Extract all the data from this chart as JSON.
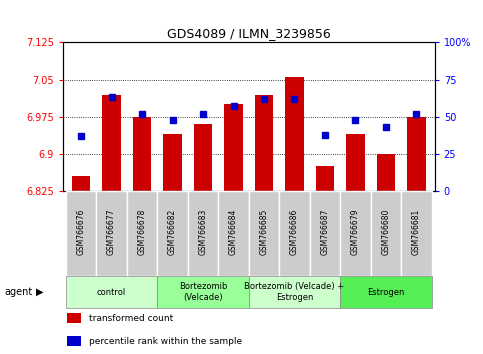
{
  "title": "GDS4089 / ILMN_3239856",
  "samples": [
    "GSM766676",
    "GSM766677",
    "GSM766678",
    "GSM766682",
    "GSM766683",
    "GSM766684",
    "GSM766685",
    "GSM766686",
    "GSM766687",
    "GSM766679",
    "GSM766680",
    "GSM766681"
  ],
  "transformed_counts": [
    6.855,
    7.02,
    6.975,
    6.94,
    6.96,
    7.0,
    7.02,
    7.055,
    6.875,
    6.94,
    6.9,
    6.975
  ],
  "percentile_ranks": [
    37,
    63,
    52,
    48,
    52,
    57,
    62,
    62,
    38,
    48,
    43,
    52
  ],
  "y_min": 6.825,
  "y_max": 7.125,
  "y_ticks": [
    6.825,
    6.9,
    6.975,
    7.05,
    7.125
  ],
  "right_y_ticks": [
    0,
    25,
    50,
    75,
    100
  ],
  "bar_color": "#cc0000",
  "dot_color": "#0000cc",
  "groups": [
    {
      "label": "control",
      "start": 0,
      "end": 3,
      "color": "#ccffcc"
    },
    {
      "label": "Bortezomib\n(Velcade)",
      "start": 3,
      "end": 6,
      "color": "#99ff99"
    },
    {
      "label": "Bortezomib (Velcade) +\nEstrogen",
      "start": 6,
      "end": 9,
      "color": "#ccffcc"
    },
    {
      "label": "Estrogen",
      "start": 9,
      "end": 12,
      "color": "#55ee55"
    }
  ],
  "sample_bg_color": "#cccccc",
  "legend_items": [
    {
      "color": "#cc0000",
      "label": "transformed count"
    },
    {
      "color": "#0000cc",
      "label": "percentile rank within the sample"
    }
  ],
  "agent_label": "agent",
  "bar_width": 0.6
}
